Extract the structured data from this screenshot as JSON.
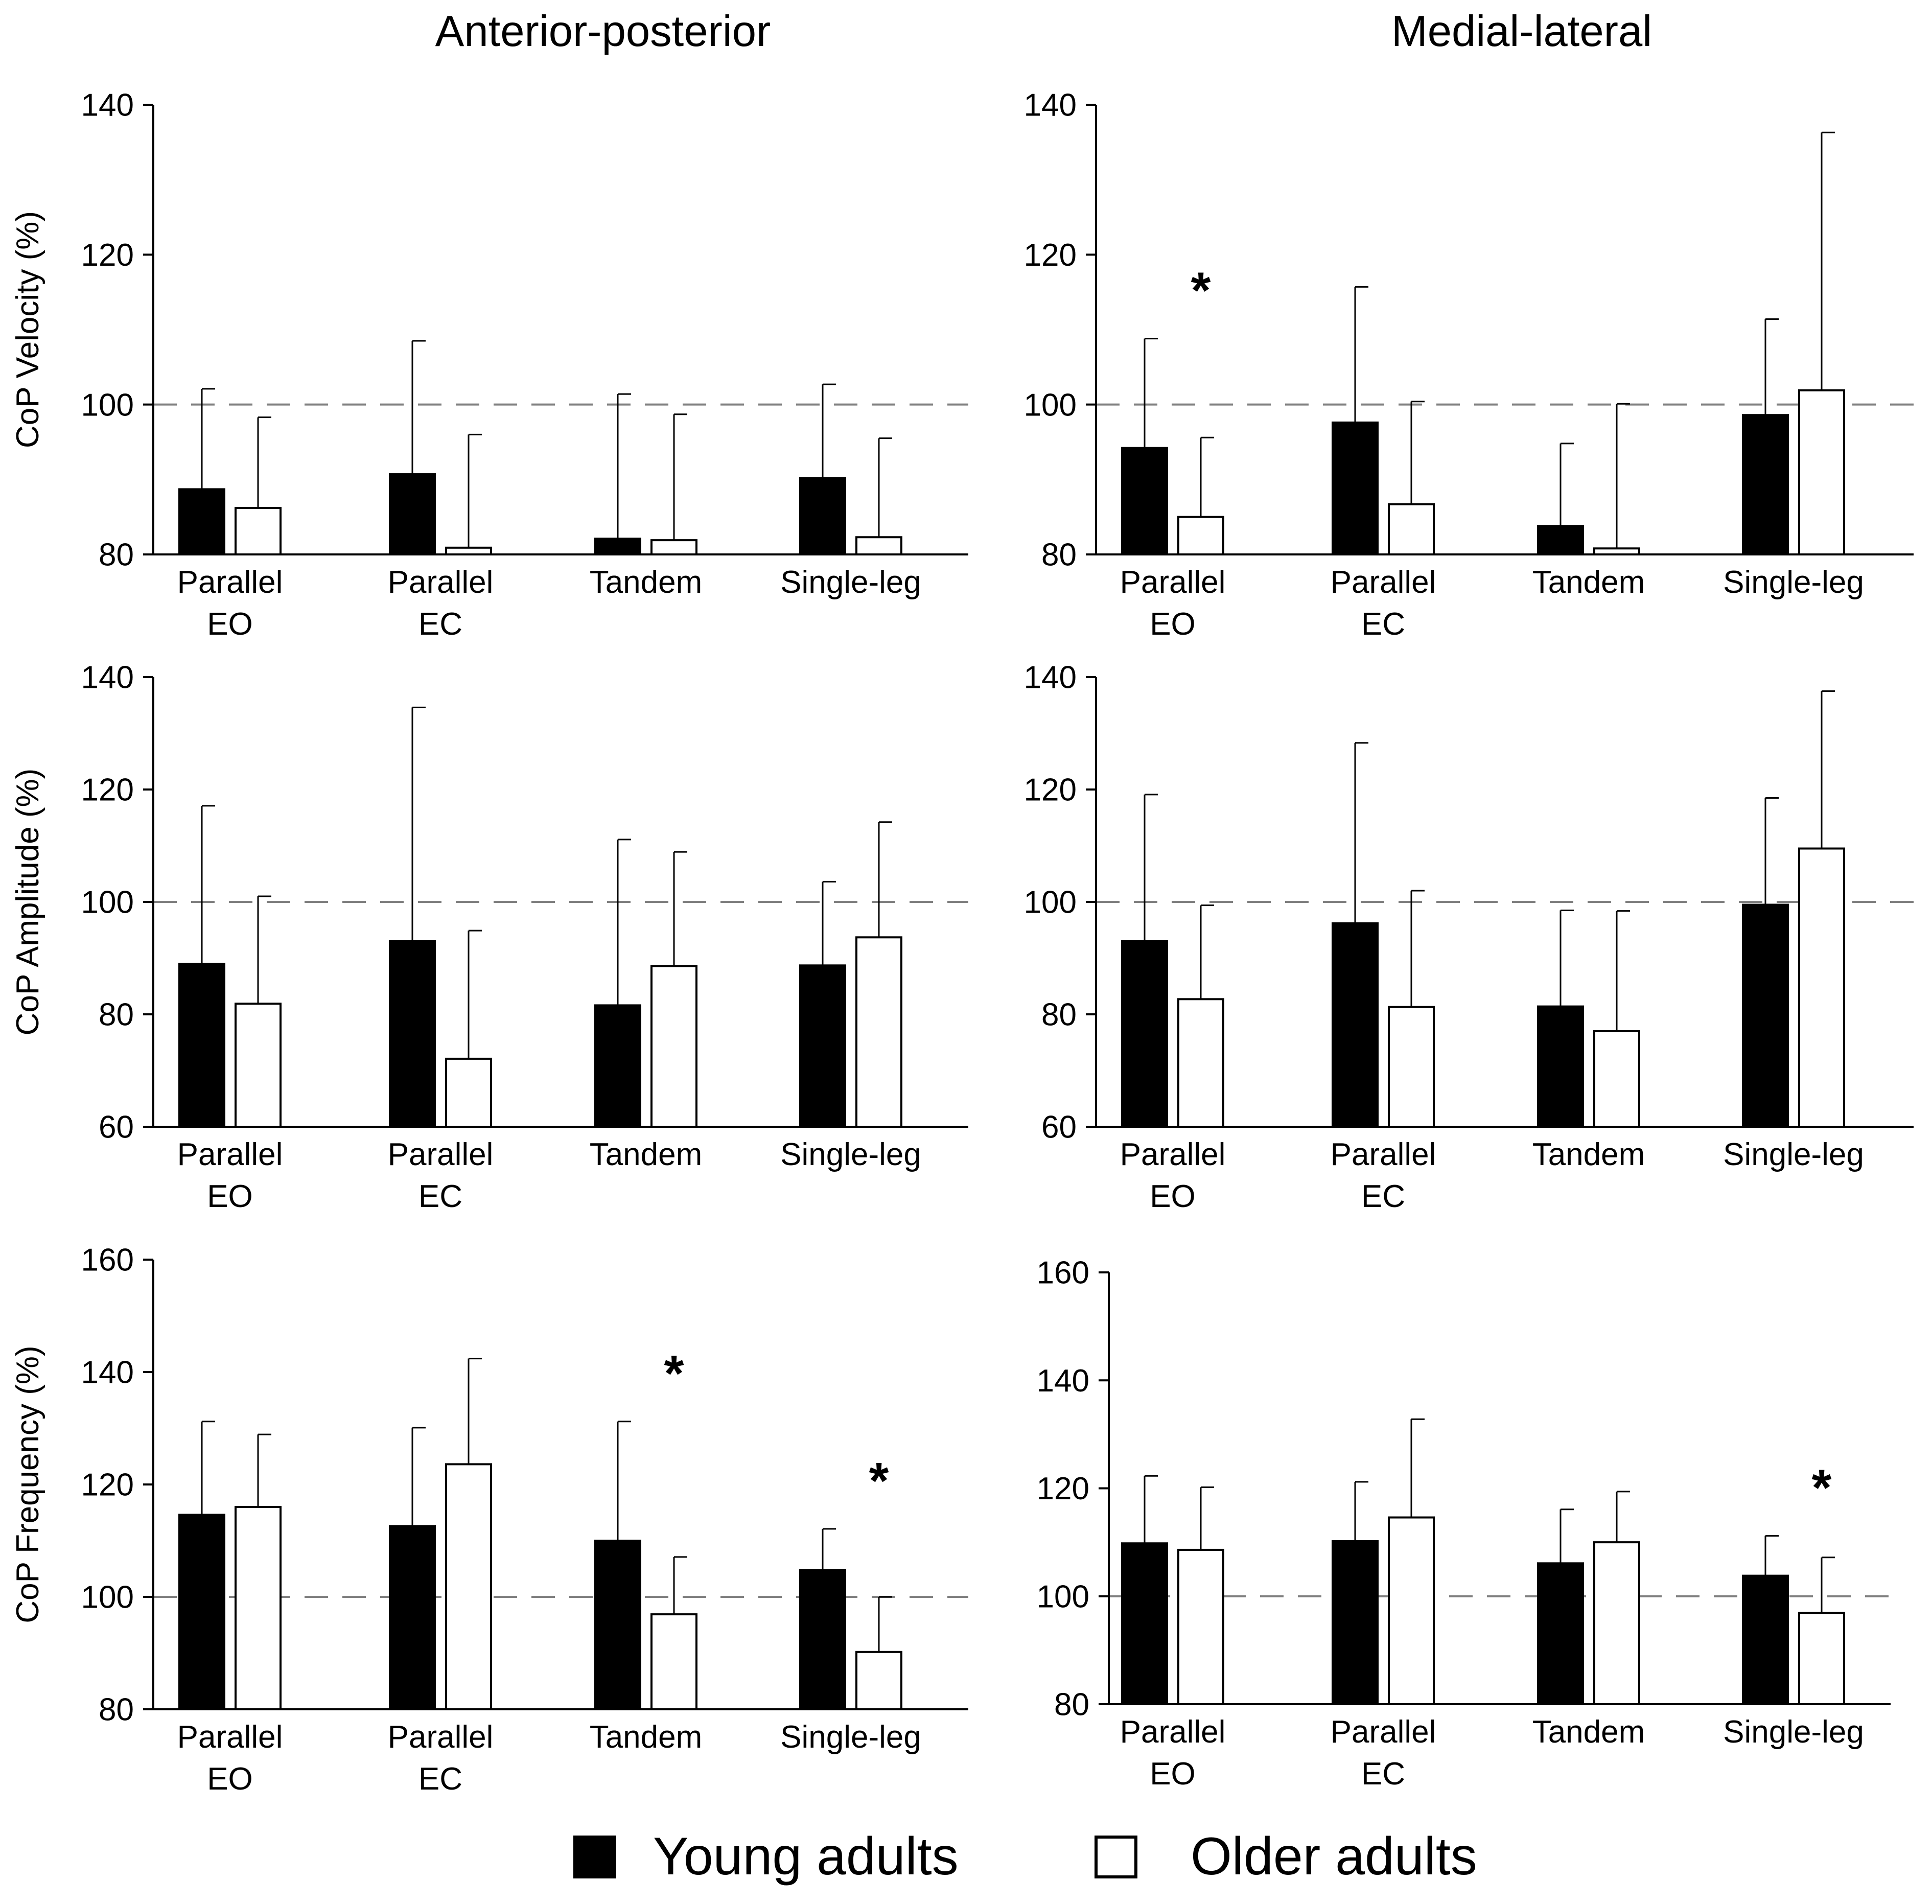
{
  "columns": [
    "Anterior-posterior",
    "Medial-lateral"
  ],
  "legend": [
    {
      "label": "Young adults",
      "color": "#000000"
    },
    {
      "label": "Older adults",
      "color": "#ffffff"
    }
  ],
  "colors": {
    "young": "#000000",
    "older": "#ffffff",
    "reference_line": "#808080"
  },
  "chart_data": [
    {
      "type": "bar",
      "column": "Anterior-posterior",
      "ylabel": "CoP Velocity (%)",
      "ylim": [
        80,
        140
      ],
      "yticks": [
        80,
        100,
        120,
        140
      ],
      "reference_line": 100,
      "categories": [
        [
          "Parallel",
          "EO"
        ],
        [
          "Parallel",
          "EC"
        ],
        [
          "Tandem"
        ],
        [
          "Single-leg"
        ]
      ],
      "series": [
        {
          "name": "Young adults",
          "values": [
            88.7,
            90.7,
            82.1,
            90.2
          ],
          "errors": [
            13.4,
            17.8,
            19.3,
            12.5
          ]
        },
        {
          "name": "Older adults",
          "values": [
            86.2,
            80.9,
            81.9,
            82.3
          ],
          "errors": [
            12.1,
            15.1,
            16.8,
            13.2
          ]
        }
      ],
      "significant": []
    },
    {
      "type": "bar",
      "column": "Medial-lateral",
      "ylabel": "",
      "ylim": [
        80,
        140
      ],
      "yticks": [
        80,
        100,
        120,
        140
      ],
      "reference_line": 100,
      "categories": [
        [
          "Parallel",
          "EO"
        ],
        [
          "Parallel",
          "EC"
        ],
        [
          "Tandem"
        ],
        [
          "Single-leg"
        ]
      ],
      "series": [
        {
          "name": "Young adults",
          "values": [
            94.2,
            97.6,
            83.8,
            98.6
          ],
          "errors": [
            14.6,
            18.1,
            11.0,
            12.8
          ]
        },
        {
          "name": "Older adults",
          "values": [
            85.0,
            86.7,
            80.8,
            101.9
          ],
          "errors": [
            10.6,
            13.7,
            19.3,
            34.4
          ]
        }
      ],
      "significant": [
        0
      ]
    },
    {
      "type": "bar",
      "column": "Anterior-posterior",
      "ylabel": "CoP Amplitude (%)",
      "ylim": [
        60,
        140
      ],
      "yticks": [
        60,
        80,
        100,
        120,
        140
      ],
      "reference_line": 100,
      "categories": [
        [
          "Parallel",
          "EO"
        ],
        [
          "Parallel",
          "EC"
        ],
        [
          "Tandem"
        ],
        [
          "Single-leg"
        ]
      ],
      "series": [
        {
          "name": "Young adults",
          "values": [
            89.0,
            93.0,
            81.6,
            88.7
          ],
          "errors": [
            28.1,
            41.6,
            29.5,
            14.9
          ]
        },
        {
          "name": "Older adults",
          "values": [
            81.9,
            72.1,
            88.6,
            93.7
          ],
          "errors": [
            19.1,
            22.8,
            20.3,
            20.5
          ]
        }
      ],
      "significant": []
    },
    {
      "type": "bar",
      "column": "Medial-lateral",
      "ylabel": "",
      "ylim": [
        60,
        140
      ],
      "yticks": [
        60,
        80,
        100,
        120,
        140
      ],
      "reference_line": 100,
      "categories": [
        [
          "Parallel",
          "EO"
        ],
        [
          "Parallel",
          "EC"
        ],
        [
          "Tandem"
        ],
        [
          "Single-leg"
        ]
      ],
      "series": [
        {
          "name": "Young adults",
          "values": [
            93.0,
            96.2,
            81.4,
            99.5
          ],
          "errors": [
            26.1,
            32.1,
            17.1,
            19.0
          ]
        },
        {
          "name": "Older adults",
          "values": [
            82.7,
            81.3,
            77.0,
            109.5
          ],
          "errors": [
            16.7,
            20.7,
            21.4,
            28.0
          ]
        }
      ],
      "significant": []
    },
    {
      "type": "bar",
      "column": "Anterior-posterior",
      "ylabel": "CoP Frequency (%)",
      "ylim": [
        80,
        160
      ],
      "yticks": [
        80,
        100,
        120,
        140,
        160
      ],
      "reference_line": 100,
      "categories": [
        [
          "Parallel",
          "EO"
        ],
        [
          "Parallel",
          "EC"
        ],
        [
          "Tandem"
        ],
        [
          "Single-leg"
        ]
      ],
      "series": [
        {
          "name": "Young adults",
          "values": [
            114.6,
            112.6,
            110.0,
            104.8
          ],
          "errors": [
            16.6,
            17.5,
            21.2,
            7.3
          ]
        },
        {
          "name": "Older adults",
          "values": [
            116.0,
            123.6,
            96.9,
            90.2
          ],
          "errors": [
            12.9,
            18.8,
            10.2,
            9.8
          ]
        }
      ],
      "significant": [
        2,
        3
      ]
    },
    {
      "type": "bar",
      "column": "Medial-lateral",
      "ylabel": "",
      "ylim": [
        80,
        160
      ],
      "yticks": [
        80,
        100,
        120,
        140,
        160
      ],
      "reference_line": 100,
      "categories": [
        [
          "Parallel",
          "EO"
        ],
        [
          "Parallel",
          "EC"
        ],
        [
          "Tandem"
        ],
        [
          "Single-leg"
        ]
      ],
      "series": [
        {
          "name": "Young adults",
          "values": [
            109.8,
            110.2,
            106.1,
            103.8
          ],
          "errors": [
            12.5,
            11.0,
            10.0,
            7.4
          ]
        },
        {
          "name": "Older adults",
          "values": [
            108.6,
            114.6,
            110.0,
            96.9
          ],
          "errors": [
            11.6,
            18.2,
            9.4,
            10.3
          ]
        }
      ],
      "significant": [
        3
      ]
    }
  ]
}
